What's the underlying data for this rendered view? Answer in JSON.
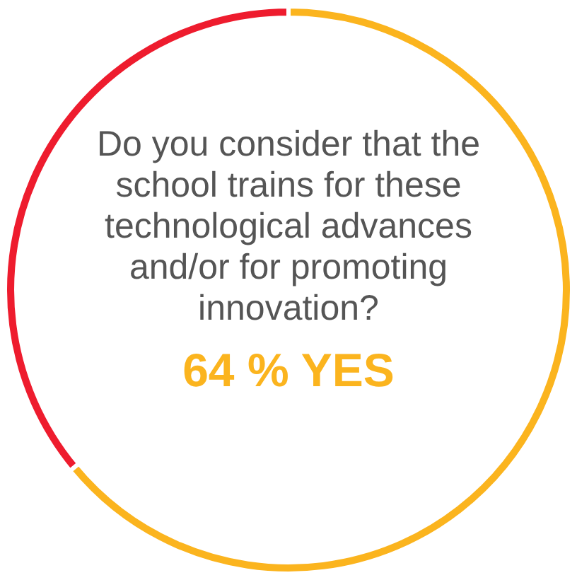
{
  "chart_data": {
    "type": "donut",
    "title": "Do you consider that the school trains for these technological advances and/or for promoting innovation?",
    "categories": [
      null,
      null
    ],
    "values": [
      64,
      36
    ],
    "colors": [
      "#fbb41e",
      "#ee1c2e"
    ],
    "annotations": [
      "64 % YES"
    ],
    "legend": false
  }
}
